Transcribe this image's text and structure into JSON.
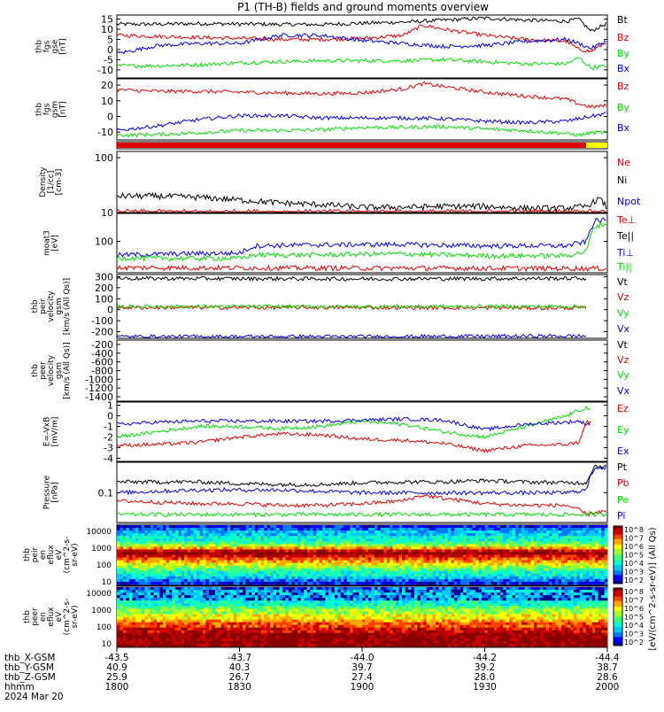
{
  "title": "P1 (TH-B) fields and ground moments overview",
  "colors": {
    "black": "#000000",
    "red": "#e00000",
    "green": "#00dd00",
    "blue": "#0000e0",
    "yellow": "#ffff00"
  },
  "chart_data": [
    {
      "type": "line",
      "ylabel": [
        "thb",
        "fgs",
        "gse",
        "[nT]"
      ],
      "yticks": [
        15,
        10,
        5,
        0,
        -5,
        -10
      ],
      "ylim": [
        -14,
        17
      ],
      "legend": [
        "Bt",
        "Bz",
        "By",
        "Bx"
      ],
      "series": [
        {
          "name": "Bt",
          "color": "black",
          "x": [
            1800,
            1810,
            1820,
            1830,
            1840,
            1850,
            1900,
            1910,
            1920,
            1930,
            1940,
            1950,
            1953,
            1956,
            2000
          ],
          "values": [
            12.5,
            12.5,
            12.8,
            12.6,
            12.4,
            12.3,
            13.0,
            13.5,
            14.5,
            15.5,
            14.5,
            14.0,
            15.0,
            9.0,
            13.0
          ]
        },
        {
          "name": "Bz",
          "color": "red",
          "x": [
            1800,
            1810,
            1820,
            1830,
            1840,
            1850,
            1900,
            1910,
            1915,
            1920,
            1930,
            1940,
            1950,
            1953,
            1956,
            2000
          ],
          "values": [
            7.0,
            6.5,
            6.0,
            5.5,
            5.0,
            5.0,
            5.5,
            7.0,
            12.0,
            10.0,
            7.0,
            5.0,
            4.0,
            0.0,
            -1.0,
            4.0
          ]
        },
        {
          "name": "By",
          "color": "green",
          "x": [
            1800,
            1810,
            1820,
            1830,
            1840,
            1850,
            1900,
            1910,
            1920,
            1930,
            1940,
            1950,
            1953,
            1956,
            2000
          ],
          "values": [
            -8.0,
            -8.0,
            -7.5,
            -6.5,
            -6.0,
            -5.5,
            -5.5,
            -5.5,
            -5.0,
            -6.0,
            -7.0,
            -7.0,
            -4.0,
            -9.0,
            -8.0
          ]
        },
        {
          "name": "Bx",
          "color": "blue",
          "x": [
            1800,
            1810,
            1820,
            1830,
            1840,
            1850,
            1900,
            1910,
            1920,
            1930,
            1940,
            1950,
            1953,
            1956,
            2000
          ],
          "values": [
            -2.0,
            2.0,
            3.0,
            3.0,
            7.0,
            7.0,
            4.5,
            3.0,
            1.5,
            2.0,
            4.0,
            5.0,
            3.0,
            0.5,
            4.5
          ]
        }
      ]
    },
    {
      "type": "line",
      "ylabel": [
        "thb",
        "fgs",
        "gsm",
        "[nT]"
      ],
      "yticks": [
        20,
        10,
        0,
        -10
      ],
      "ylim": [
        -15,
        24
      ],
      "legend": [
        "Bz",
        "By",
        "Bx"
      ],
      "series": [
        {
          "name": "Bz",
          "color": "red",
          "x": [
            1800,
            1810,
            1820,
            1830,
            1840,
            1850,
            1900,
            1910,
            1915,
            1920,
            1930,
            1940,
            1950,
            1953,
            1956,
            2000
          ],
          "values": [
            17.0,
            16.0,
            16.0,
            15.5,
            15.0,
            14.5,
            15.0,
            17.5,
            21.0,
            19.0,
            15.5,
            13.0,
            11.0,
            8.0,
            6.0,
            7.0
          ]
        },
        {
          "name": "By",
          "color": "green",
          "x": [
            1800,
            1810,
            1820,
            1830,
            1840,
            1850,
            1900,
            1910,
            1920,
            1930,
            1940,
            1950,
            1953,
            1956,
            2000
          ],
          "values": [
            -12.0,
            -11.5,
            -10.5,
            -9.0,
            -9.0,
            -8.5,
            -7.0,
            -7.0,
            -6.5,
            -8.0,
            -9.0,
            -11.0,
            -12.0,
            -10.5,
            -10.0
          ]
        },
        {
          "name": "Bx",
          "color": "blue",
          "x": [
            1800,
            1810,
            1820,
            1830,
            1840,
            1850,
            1900,
            1910,
            1920,
            1930,
            1940,
            1950,
            1953,
            1956,
            2000
          ],
          "values": [
            -9.0,
            -6.0,
            -2.0,
            0.5,
            0.5,
            -1.0,
            -1.0,
            -1.0,
            -1.5,
            -3.0,
            -4.0,
            -3.0,
            -1.5,
            0.0,
            2.0
          ]
        }
      ]
    },
    {
      "type": "line",
      "ylabel": [
        "Density",
        "[1/cc]",
        "[cm-3]"
      ],
      "yticks": [
        100,
        10
      ],
      "ylim": [
        10,
        130
      ],
      "log": true,
      "legend": [
        "Ne",
        "Ni",
        "Npot"
      ],
      "series": [
        {
          "name": "Ni",
          "color": "black",
          "x": [
            1800,
            1810,
            1820,
            1830,
            1840,
            1850,
            1900,
            1910,
            1920,
            1930,
            1940,
            1950,
            1955,
            1958,
            2000
          ],
          "values": [
            20,
            20,
            19,
            17,
            15,
            14,
            12.5,
            12.5,
            13,
            13,
            12,
            12,
            13,
            18,
            12
          ]
        },
        {
          "name": "Ne",
          "color": "red",
          "x": [
            1800,
            2000
          ],
          "values": [
            10.2,
            10.2
          ]
        }
      ]
    },
    {
      "type": "line",
      "ylabel": [
        "moat3",
        "[eV]"
      ],
      "yticks": [
        100
      ],
      "ylim": [
        20,
        420
      ],
      "log": true,
      "legend": [
        "Te⊥",
        "Te||",
        "Ti⊥",
        "Ti||"
      ],
      "series": [
        {
          "name": "Ti⊥",
          "color": "blue",
          "x": [
            1800,
            1810,
            1820,
            1830,
            1834,
            1840,
            1850,
            1900,
            1910,
            1920,
            1930,
            1940,
            1950,
            1955,
            1957,
            2000
          ],
          "values": [
            50,
            52,
            54,
            55,
            80,
            82,
            84,
            85,
            86,
            82,
            80,
            80,
            80,
            100,
            290,
            300
          ]
        },
        {
          "name": "Ti||",
          "color": "green",
          "x": [
            1800,
            1810,
            1820,
            1830,
            1834,
            1840,
            1850,
            1900,
            1910,
            1920,
            1930,
            1940,
            1950,
            1955,
            1957,
            2000
          ],
          "values": [
            43,
            42,
            42,
            42,
            50,
            50,
            50,
            52,
            53,
            50,
            48,
            48,
            48,
            60,
            220,
            250
          ]
        },
        {
          "name": "Te⊥",
          "color": "red",
          "x": [
            1800,
            2000
          ],
          "values": [
            26,
            25
          ]
        }
      ]
    },
    {
      "type": "line",
      "ylabel": [
        "thb",
        "peir",
        "velocity",
        "gsm",
        "[km/s (All Qs)]"
      ],
      "yticks": [
        300,
        200,
        100,
        0,
        -100,
        -200
      ],
      "ylim": [
        -260,
        320
      ],
      "legend": [
        "Vt",
        "Vz",
        "Vy",
        "Vx"
      ],
      "series": [
        {
          "name": "Vt",
          "color": "black",
          "x": [
            1800,
            1900,
            1955
          ],
          "values": [
            285,
            280,
            285
          ]
        },
        {
          "name": "Vz",
          "color": "red",
          "x": [
            1800,
            1900,
            1955
          ],
          "values": [
            20,
            20,
            15
          ]
        },
        {
          "name": "Vy",
          "color": "green",
          "x": [
            1800,
            1900,
            1955
          ],
          "values": [
            30,
            28,
            30
          ]
        },
        {
          "name": "Vx",
          "color": "blue",
          "x": [
            1800,
            1900,
            1955
          ],
          "values": [
            -245,
            -245,
            -240
          ]
        }
      ]
    },
    {
      "type": "line",
      "ylabel": [
        "thb",
        "peer",
        "velocity",
        "gsm",
        "[km/s (All Qs)]"
      ],
      "yticks": [
        -200,
        -400,
        -600,
        -800,
        -1000,
        -1200,
        -1400
      ],
      "ylim": [
        -1500,
        -100
      ],
      "legend": [
        "Vt",
        "Vz",
        "Vy",
        "Vx"
      ],
      "series": []
    },
    {
      "type": "line",
      "ylabel": [
        "E=-VxB",
        "[mV/m]"
      ],
      "yticks": [
        1,
        0,
        -1,
        -2,
        -3,
        -4
      ],
      "ylim": [
        -4.3,
        1.3
      ],
      "legend": [
        "Ez",
        "Ey",
        "Ex"
      ],
      "series": [
        {
          "name": "Ey",
          "color": "green",
          "x": [
            1800,
            1810,
            1820,
            1830,
            1840,
            1850,
            1900,
            1910,
            1920,
            1930,
            1940,
            1950,
            1953,
            1955,
            1956
          ],
          "values": [
            -2.0,
            -1.5,
            -1.0,
            -1.0,
            -1.2,
            -1.0,
            -0.5,
            -0.8,
            -1.5,
            -2.0,
            -1.0,
            0.0,
            0.5,
            0.8,
            0.5
          ]
        },
        {
          "name": "Ex",
          "color": "blue",
          "x": [
            1800,
            1810,
            1820,
            1830,
            1840,
            1850,
            1900,
            1910,
            1920,
            1930,
            1940,
            1950,
            1953,
            1955,
            1956
          ],
          "values": [
            -0.8,
            -0.6,
            -0.5,
            -0.5,
            -0.5,
            -0.5,
            -0.4,
            -0.3,
            -0.4,
            -1.3,
            -0.8,
            -0.6,
            -0.5,
            -0.8,
            -0.5
          ]
        },
        {
          "name": "Ez",
          "color": "red",
          "x": [
            1800,
            1810,
            1820,
            1830,
            1840,
            1850,
            1900,
            1910,
            1920,
            1930,
            1940,
            1950,
            1953,
            1955,
            1956
          ],
          "values": [
            -2.8,
            -2.7,
            -2.5,
            -2.0,
            -1.7,
            -1.8,
            -2.2,
            -2.3,
            -2.6,
            -3.3,
            -2.8,
            -2.7,
            -2.5,
            -0.5,
            -1.0
          ]
        }
      ]
    },
    {
      "type": "line",
      "ylabel": [
        "Pressure",
        "[nPa]"
      ],
      "yticks": [
        0.1
      ],
      "ylim": [
        0.015,
        0.7
      ],
      "log": true,
      "legend": [
        "Pt",
        "Pb",
        "Pe",
        "Pi"
      ],
      "series": [
        {
          "name": "Pt",
          "color": "black",
          "x": [
            1800,
            1810,
            1820,
            1830,
            1840,
            1850,
            1900,
            1910,
            1920,
            1930,
            1940,
            1950,
            1955,
            1957,
            2000
          ],
          "values": [
            0.2,
            0.2,
            0.2,
            0.18,
            0.17,
            0.17,
            0.19,
            0.2,
            0.2,
            0.22,
            0.2,
            0.19,
            0.19,
            0.55,
            0.55
          ]
        },
        {
          "name": "Pi",
          "color": "blue",
          "x": [
            1800,
            1810,
            1820,
            1830,
            1840,
            1850,
            1900,
            1910,
            1920,
            1930,
            1940,
            1950,
            1955,
            1957,
            2000
          ],
          "values": [
            0.1,
            0.11,
            0.12,
            0.12,
            0.12,
            0.11,
            0.1,
            0.1,
            0.1,
            0.1,
            0.1,
            0.1,
            0.12,
            0.5,
            0.5
          ]
        },
        {
          "name": "Pb",
          "color": "red",
          "x": [
            1800,
            1810,
            1820,
            1830,
            1840,
            1850,
            1900,
            1910,
            1915,
            1920,
            1930,
            1940,
            1950,
            1955,
            1958,
            2000
          ],
          "values": [
            0.06,
            0.055,
            0.05,
            0.05,
            0.045,
            0.045,
            0.05,
            0.06,
            0.085,
            0.07,
            0.05,
            0.045,
            0.045,
            0.025,
            0.03,
            0.03
          ]
        },
        {
          "name": "Pe",
          "color": "green",
          "x": [
            1800,
            2000
          ],
          "values": [
            0.025,
            0.025
          ]
        }
      ]
    },
    {
      "type": "heatmap",
      "ylabel": [
        "thb",
        "peir",
        "en",
        "eflux",
        "eV",
        "(cm^2-s-",
        "sr-eV)"
      ],
      "yticks": [
        "10000",
        "1000",
        "100",
        "10"
      ],
      "colorbar_ticks": [
        "10^8",
        "10^7",
        "10^6",
        "10^5",
        "10^4",
        "10^3",
        "10^2"
      ]
    },
    {
      "type": "heatmap",
      "ylabel": [
        "thb",
        "peer",
        "en",
        "eflux",
        "eV",
        "(cm^2-s-",
        "sr-eV)"
      ],
      "yticks": [
        "10000",
        "1000",
        "100",
        "10"
      ],
      "colorbar_ticks": [
        "10^8",
        "10^7",
        "10^6",
        "10^5",
        "10^4",
        "10^3",
        "10^2"
      ]
    }
  ],
  "colorbar_label": "[eV/(cm^2-s-sr-eV)] (All Qs)",
  "colorbar_label_upper": "[eV/(cm^2-s-sr-eV)] (All Qs)",
  "xaxis": {
    "ticks": [
      1800,
      1830,
      1900,
      1930,
      2000
    ],
    "rows": [
      {
        "label": "thb_X-GSM",
        "values": [
          "-43.5",
          "-43.7",
          "-44.0",
          "-44.2",
          "-44.4"
        ]
      },
      {
        "label": "thb_Y-GSM",
        "values": [
          "40.9",
          "40.3",
          "39.7",
          "39.2",
          "38.7"
        ]
      },
      {
        "label": "thb_Z-GSM",
        "values": [
          "25.9",
          "26.7",
          "27.4",
          "28.0",
          "28.6"
        ]
      },
      {
        "label": "hhmm",
        "values": [
          "1800",
          "1830",
          "1900",
          "1930",
          "2000"
        ]
      }
    ],
    "date": "2024 Mar 20"
  }
}
